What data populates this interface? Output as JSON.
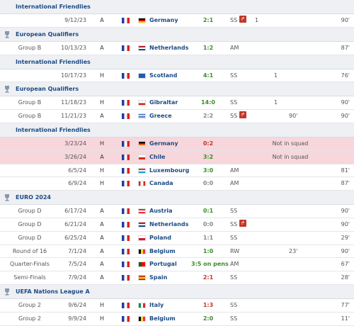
{
  "sections": [
    {
      "competition": "International Friendlies",
      "icon": "none",
      "rows": [
        {
          "round": "",
          "date": "9/12/23",
          "venue": "A",
          "home_flag": "france-flag",
          "opp_flag": "germany-flag",
          "opponent": "Germany",
          "result": "2:1",
          "result_type": "w",
          "position": "SS",
          "sub_off": true,
          "goals": "1",
          "assists": "",
          "sub_on": "",
          "sub_off_min": "",
          "minutes": "90'"
        }
      ]
    },
    {
      "competition": "European Qualifiers",
      "icon": "trophy-icon",
      "rows": [
        {
          "round": "Group B",
          "date": "10/13/23",
          "venue": "A",
          "home_flag": "france-flag",
          "opp_flag": "netherlands-flag",
          "opponent": "Netherlands",
          "result": "1:2",
          "result_type": "w",
          "position": "AM",
          "sub_off": false,
          "goals": "",
          "assists": "",
          "sub_on": "",
          "sub_off_min": "",
          "minutes": "87'"
        }
      ]
    },
    {
      "competition": "International Friendlies",
      "icon": "none",
      "rows": [
        {
          "round": "",
          "date": "10/17/23",
          "venue": "H",
          "home_flag": "france-flag",
          "opp_flag": "scotland-flag",
          "opponent": "Scotland",
          "result": "4:1",
          "result_type": "w",
          "position": "SS",
          "sub_off": false,
          "goals": "",
          "assists": "1",
          "sub_on": "",
          "sub_off_min": "",
          "minutes": "76'"
        }
      ]
    },
    {
      "competition": "European Qualifiers",
      "icon": "trophy-icon",
      "rows": [
        {
          "round": "Group B",
          "date": "11/18/23",
          "venue": "H",
          "home_flag": "france-flag",
          "opp_flag": "gibraltar-flag",
          "opponent": "Gibraltar",
          "result": "14:0",
          "result_type": "w",
          "position": "SS",
          "sub_off": false,
          "goals": "",
          "assists": "1",
          "sub_on": "",
          "sub_off_min": "",
          "minutes": "90'"
        },
        {
          "round": "Group B",
          "date": "11/21/23",
          "venue": "A",
          "home_flag": "france-flag",
          "opp_flag": "greece-flag",
          "opponent": "Greece",
          "result": "2:2",
          "result_type": "d",
          "position": "SS",
          "sub_off": true,
          "goals": "",
          "assists": "",
          "sub_on": "90'",
          "sub_off_min": "",
          "minutes": "90'"
        }
      ]
    },
    {
      "competition": "International Friendlies",
      "icon": "none",
      "rows": [
        {
          "round": "",
          "date": "3/23/24",
          "venue": "H",
          "home_flag": "france-flag",
          "opp_flag": "germany-flag",
          "opponent": "Germany",
          "result": "0:2",
          "result_type": "l",
          "not_in_squad": "Not in squad",
          "minutes": ""
        },
        {
          "round": "",
          "date": "3/26/24",
          "venue": "A",
          "home_flag": "france-flag",
          "opp_flag": "chile-flag",
          "opponent": "Chile",
          "result": "3:2",
          "result_type": "w",
          "not_in_squad": "Not in squad",
          "minutes": ""
        },
        {
          "round": "",
          "date": "6/5/24",
          "venue": "H",
          "home_flag": "france-flag",
          "opp_flag": "luxembourg-flag",
          "opponent": "Luxembourg",
          "result": "3:0",
          "result_type": "w",
          "position": "AM",
          "sub_off": false,
          "goals": "",
          "assists": "",
          "sub_on": "",
          "sub_off_min": "",
          "minutes": "81'"
        },
        {
          "round": "",
          "date": "6/9/24",
          "venue": "H",
          "home_flag": "france-flag",
          "opp_flag": "canada-flag",
          "opponent": "Canada",
          "result": "0:0",
          "result_type": "d",
          "position": "AM",
          "sub_off": false,
          "goals": "",
          "assists": "",
          "sub_on": "",
          "sub_off_min": "",
          "minutes": "87'"
        }
      ]
    },
    {
      "competition": "EURO 2024",
      "icon": "euro-trophy-icon",
      "rows": [
        {
          "round": "Group D",
          "date": "6/17/24",
          "venue": "A",
          "home_flag": "france-flag",
          "opp_flag": "austria-flag",
          "opponent": "Austria",
          "result": "0:1",
          "result_type": "w",
          "position": "SS",
          "sub_off": false,
          "goals": "",
          "assists": "",
          "sub_on": "",
          "sub_off_min": "",
          "minutes": "90'"
        },
        {
          "round": "Group D",
          "date": "6/21/24",
          "venue": "A",
          "home_flag": "france-flag",
          "opp_flag": "netherlands-flag",
          "opponent": "Netherlands",
          "result": "0:0",
          "result_type": "d",
          "position": "SS",
          "sub_off": true,
          "goals": "",
          "assists": "",
          "sub_on": "",
          "sub_off_min": "",
          "minutes": "90'"
        },
        {
          "round": "Group D",
          "date": "6/25/24",
          "venue": "A",
          "home_flag": "france-flag",
          "opp_flag": "poland-flag",
          "opponent": "Poland",
          "result": "1:1",
          "result_type": "d",
          "position": "SS",
          "sub_off": false,
          "goals": "",
          "assists": "",
          "sub_on": "",
          "sub_off_min": "",
          "minutes": "29'"
        },
        {
          "round": "Round of 16",
          "date": "7/1/24",
          "venue": "A",
          "home_flag": "france-flag",
          "opp_flag": "belgium-flag",
          "opponent": "Belgium",
          "result": "1:0",
          "result_type": "w",
          "position": "RW",
          "sub_off": false,
          "goals": "",
          "assists": "",
          "sub_on": "23'",
          "sub_off_min": "",
          "minutes": "90'"
        },
        {
          "round": "Quarter-Finals",
          "date": "7/5/24",
          "venue": "A",
          "home_flag": "france-flag",
          "opp_flag": "portugal-flag",
          "opponent": "Portugal",
          "result": "3:5 on pens",
          "result_type": "w",
          "position": "AM",
          "sub_off": false,
          "goals": "",
          "assists": "",
          "sub_on": "",
          "sub_off_min": "",
          "minutes": "67'"
        },
        {
          "round": "Semi-Finals",
          "date": "7/9/24",
          "venue": "A",
          "home_flag": "france-flag",
          "opp_flag": "spain-flag",
          "opponent": "Spain",
          "result": "2:1",
          "result_type": "l",
          "position": "SS",
          "sub_off": false,
          "goals": "",
          "assists": "",
          "sub_on": "",
          "sub_off_min": "",
          "minutes": "28'"
        }
      ]
    },
    {
      "competition": "UEFA Nations League A",
      "icon": "nations-league-icon",
      "rows": [
        {
          "round": "Group 2",
          "date": "9/6/24",
          "venue": "H",
          "home_flag": "france-flag",
          "opp_flag": "italy-flag",
          "opponent": "Italy",
          "result": "1:3",
          "result_type": "l",
          "position": "SS",
          "sub_off": false,
          "goals": "",
          "assists": "",
          "sub_on": "",
          "sub_off_min": "",
          "minutes": "77'"
        },
        {
          "round": "Group 2",
          "date": "9/9/24",
          "venue": "H",
          "home_flag": "france-flag",
          "opp_flag": "belgium-flag",
          "opponent": "Belgium",
          "result": "2:0",
          "result_type": "w",
          "position": "SS",
          "sub_off": false,
          "goals": "",
          "assists": "",
          "sub_on": "",
          "sub_off_min": "",
          "minutes": "11'"
        }
      ]
    }
  ],
  "colors": {
    "link": "#1d4b85",
    "win": "#3b8c2a",
    "draw": "#888888",
    "loss": "#c0392b",
    "not_in_squad_bg": "#f7d6dc"
  },
  "sub_off_symbol": "↱"
}
